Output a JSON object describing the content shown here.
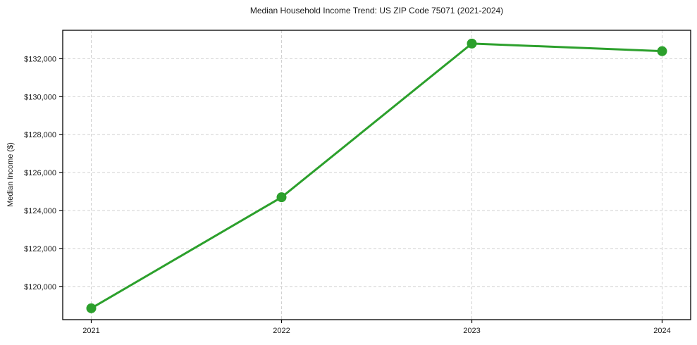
{
  "chart_data": {
    "type": "line",
    "title": "Median Household Income Trend: US ZIP Code 75071 (2021-2024)",
    "xlabel": "",
    "ylabel": "Median Income ($)",
    "x": [
      2021,
      2022,
      2023,
      2024
    ],
    "x_tick_labels": [
      "2021",
      "2022",
      "2023",
      "2024"
    ],
    "series": [
      {
        "name": "Median Household Income",
        "values": [
          118850,
          124700,
          132800,
          132400
        ]
      }
    ],
    "y_ticks": [
      120000,
      122000,
      124000,
      126000,
      128000,
      130000,
      132000
    ],
    "y_tick_labels": [
      "$120,000",
      "$122,000",
      "$124,000",
      "$126,000",
      "$128,000",
      "$130,000",
      "$132,000"
    ],
    "xlim": [
      2020.85,
      2024.15
    ],
    "ylim": [
      118250,
      133500
    ],
    "grid": true,
    "legend_position": "none",
    "colors": {
      "line": "#2ca02c",
      "marker": "#2ca02c",
      "grid": "#d0d0d0",
      "spine": "#000000",
      "text": "#1a1a1a",
      "background": "#ffffff"
    }
  }
}
